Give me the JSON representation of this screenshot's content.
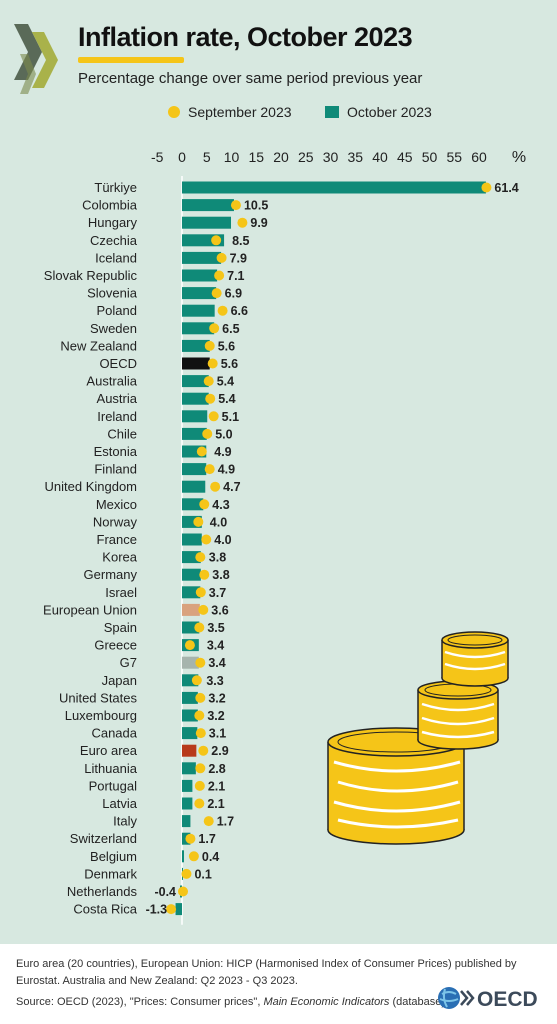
{
  "header": {
    "title": "Inflation rate, October 2023",
    "subtitle": "Percentage change over same period previous year"
  },
  "legend": {
    "september_label": "September 2023",
    "october_label": "October 2023"
  },
  "colors": {
    "background": "#d7e8e0",
    "bar": "#0f8a78",
    "oecd_bar": "#111111",
    "eu_bar": "#d9a27e",
    "g7_bar": "#a6b4ad",
    "euro_area_bar": "#b83a1b",
    "dot": "#f5c518"
  },
  "chart_data": {
    "type": "bar",
    "orientation": "horizontal",
    "title": "Inflation rate, October 2023",
    "subtitle": "Percentage change over same period previous year",
    "xunit": "%",
    "xlim": [
      -5,
      65
    ],
    "xticks": [
      -5,
      0,
      5,
      10,
      15,
      20,
      25,
      30,
      35,
      40,
      45,
      50,
      55,
      60
    ],
    "axis_position": "top",
    "legend_position": "top",
    "categories": [
      "Türkiye",
      "Colombia",
      "Hungary",
      "Czechia",
      "Iceland",
      "Slovak Republic",
      "Slovenia",
      "Poland",
      "Sweden",
      "New Zealand",
      "OECD",
      "Australia",
      "Austria",
      "Ireland",
      "Chile",
      "Estonia",
      "Finland",
      "United Kingdom",
      "Mexico",
      "Norway",
      "France",
      "Korea",
      "Germany",
      "Israel",
      "European Union",
      "Spain",
      "Greece",
      "G7",
      "Japan",
      "United States",
      "Luxembourg",
      "Canada",
      "Euro area",
      "Lithuania",
      "Portugal",
      "Latvia",
      "Italy",
      "Switzerland",
      "Belgium",
      "Denmark",
      "Netherlands",
      "Costa Rica"
    ],
    "series": [
      {
        "name": "October 2023",
        "kind": "bar",
        "values": [
          61.4,
          10.5,
          9.9,
          8.5,
          7.9,
          7.1,
          6.9,
          6.6,
          6.5,
          5.6,
          5.6,
          5.4,
          5.4,
          5.1,
          5.0,
          4.9,
          4.9,
          4.7,
          4.3,
          4.0,
          4.0,
          3.8,
          3.8,
          3.7,
          3.6,
          3.5,
          3.4,
          3.4,
          3.3,
          3.2,
          3.2,
          3.1,
          2.9,
          2.8,
          2.1,
          2.1,
          1.7,
          1.7,
          0.4,
          0.1,
          -0.4,
          -1.3
        ],
        "labels": [
          "61.4",
          "10.5",
          "9.9",
          "8.5",
          "7.9",
          "7.1",
          "6.9",
          "6.6",
          "6.5",
          "5.6",
          "5.6",
          "5.4",
          "5.4",
          "5.1",
          "5.0",
          "4.9",
          "4.9",
          "4.7",
          "4.3",
          "4.0",
          "4.0",
          "3.8",
          "3.8",
          "3.7",
          "3.6",
          "3.5",
          "3.4",
          "3.4",
          "3.3",
          "3.2",
          "3.2",
          "3.1",
          "2.9",
          "2.8",
          "2.1",
          "2.1",
          "1.7",
          "1.7",
          "0.4",
          "0.1",
          "-0.4",
          "-1.3"
        ]
      },
      {
        "name": "September 2023",
        "kind": "dot",
        "values": [
          61.5,
          10.9,
          12.2,
          6.9,
          8.0,
          7.5,
          7.0,
          8.2,
          6.5,
          5.6,
          6.2,
          5.4,
          5.7,
          6.4,
          5.1,
          4.0,
          5.6,
          6.7,
          4.5,
          3.3,
          4.9,
          3.7,
          4.5,
          3.8,
          4.3,
          3.5,
          1.6,
          3.7,
          3.0,
          3.7,
          3.5,
          3.8,
          4.3,
          3.7,
          3.6,
          3.5,
          5.4,
          1.7,
          2.4,
          0.9,
          0.2,
          -2.2
        ]
      }
    ],
    "highlight": {
      "OECD": "oecd_bar",
      "European Union": "eu_bar",
      "G7": "g7_bar",
      "Euro area": "euro_area_bar"
    }
  },
  "footer": {
    "notes": "Euro area (20 countries), European Union: HICP (Harmonised Index of Consumer Prices) published by Eurostat. Australia and New Zealand: Q2 2023 - Q3 2023.",
    "source_prefix": "Source: OECD (2023), \"Prices: Consumer prices\", ",
    "source_italic": "Main Economic Indicators",
    "source_suffix": " (database)",
    "logo_text": "OECD"
  }
}
